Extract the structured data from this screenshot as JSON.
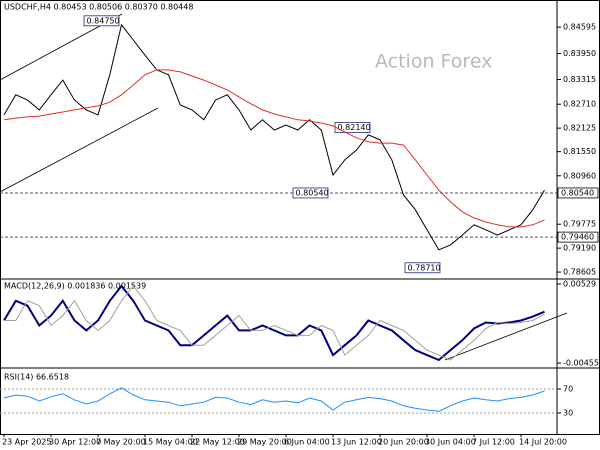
{
  "chart_data": [
    {
      "type": "line",
      "title": "USDCHF,H4 0.80453 0.80506 0.80370 0.80448",
      "watermark": "Action Forex",
      "categories": [
        "23 Apr 2025",
        null,
        null,
        null,
        "30 Apr 12:00",
        null,
        null,
        null,
        "7 May 20:00",
        null,
        null,
        null,
        "15 May 04:00",
        null,
        null,
        null,
        "22 May 12:00",
        null,
        null,
        null,
        "29 May 20:00",
        null,
        null,
        null,
        "6 Jun 04:00",
        null,
        null,
        null,
        "13 Jun 12:00",
        null,
        null,
        null,
        "20 Jun 20:00",
        null,
        null,
        null,
        "30 Jun 04:00",
        null,
        null,
        null,
        "7 Jul 12:00",
        null,
        null,
        null,
        "14 Jul 20:00",
        null,
        null
      ],
      "series": [
        {
          "color": "#000000",
          "values": [
            0.8245,
            0.8294,
            0.8281,
            0.8257,
            0.8294,
            0.833,
            0.8281,
            0.8257,
            0.8245,
            0.8343,
            0.8465,
            0.8428,
            0.8391,
            0.8355,
            0.8343,
            0.8269,
            0.8257,
            0.8233,
            0.8281,
            0.8294,
            0.8257,
            0.8208,
            0.8233,
            0.8208,
            0.822,
            0.8208,
            0.8233,
            0.8208,
            0.8098,
            0.8135,
            0.8159,
            0.8196,
            0.8184,
            0.8135,
            0.8049,
            0.8013,
            0.7964,
            0.7915,
            0.7927,
            0.7951,
            0.7976,
            0.7964,
            0.7951,
            0.7964,
            0.7976,
            0.8013,
            0.8061
          ]
        },
        {
          "color": "#e0302a",
          "values": [
            0.8233,
            0.8237,
            0.824,
            0.8242,
            0.8247,
            0.8252,
            0.8257,
            0.8262,
            0.8267,
            0.8276,
            0.8294,
            0.8318,
            0.8343,
            0.8355,
            0.8355,
            0.835,
            0.834,
            0.833,
            0.8318,
            0.8306,
            0.8289,
            0.8272,
            0.8257,
            0.8247,
            0.824,
            0.8233,
            0.823,
            0.8225,
            0.8218,
            0.8203,
            0.8189,
            0.8179,
            0.8176,
            0.8176,
            0.8171,
            0.8135,
            0.8098,
            0.8061,
            0.8032,
            0.8008,
            0.7993,
            0.7983,
            0.7976,
            0.7971,
            0.7971,
            0.7976,
            0.7988
          ]
        }
      ],
      "ylim": [
        0.7846,
        0.8521
      ],
      "yticks": [
        {
          "value": 0.84595,
          "label": "0.84595"
        },
        {
          "value": 0.8395,
          "label": "0.83950"
        },
        {
          "value": 0.83315,
          "label": "0.83315"
        },
        {
          "value": 0.8271,
          "label": "0.82710"
        },
        {
          "value": 0.82125,
          "label": "0.82125"
        },
        {
          "value": 0.8155,
          "label": "0.81550"
        },
        {
          "value": 0.8096,
          "label": "0.80960"
        },
        {
          "value": 0.79775,
          "label": "0.79775"
        },
        {
          "value": 0.7919,
          "label": "0.79190"
        },
        {
          "value": 0.78605,
          "label": "0.78605"
        }
      ],
      "hlines": [
        {
          "value": 0.8054,
          "label": "0.80540"
        },
        {
          "value": 0.7946,
          "label": "0.79460"
        }
      ],
      "annotations": [
        {
          "value": 0.8475,
          "label": "0.84750"
        },
        {
          "value": 0.8214,
          "label": "0.82140"
        },
        {
          "value": 0.8054,
          "label": "0.80540"
        },
        {
          "value": 0.7871,
          "label": "0.78710"
        }
      ]
    },
    {
      "type": "line",
      "title": "MACD(12,26,9) 0.001836 0.001539",
      "series": [
        {
          "color": "#00007f",
          "values": [
            0.00074,
            0.0032,
            0.00258,
            0.00012,
            0.00135,
            0.0032,
            0.00074,
            -0.00049,
            0.00074,
            0.0032,
            0.00504,
            0.0032,
            0.00074,
            0.00012,
            -0.00049,
            -0.00234,
            -0.00234,
            -0.00111,
            0.00012,
            0.00135,
            -0.00049,
            -0.00049,
            0.00012,
            -0.00049,
            -0.00111,
            -0.00111,
            0.00012,
            -0.00049,
            -0.00357,
            -0.00234,
            -0.00111,
            0.00074,
            0.00012,
            -0.00049,
            -0.00172,
            -0.00295,
            -0.00357,
            -0.00418,
            -0.00295,
            -0.00172,
            -0.00025,
            0.00049,
            0.00037,
            0.00049,
            0.00074,
            0.00123,
            0.00184
          ]
        },
        {
          "color": "#a0a0a0",
          "values": [
            0.00074,
            0.00074,
            0.0032,
            0.00258,
            0.00012,
            0.00135,
            0.0032,
            0.00074,
            -0.00049,
            0.00074,
            0.0032,
            0.00504,
            0.0032,
            0.00074,
            0.00012,
            -0.00049,
            -0.00234,
            -0.00234,
            -0.00111,
            0.00012,
            0.00135,
            -0.00049,
            -0.00049,
            0.00012,
            -0.00049,
            -0.00111,
            -0.00111,
            0.00012,
            -0.00049,
            -0.00357,
            -0.00234,
            -0.00111,
            0.00074,
            0.00012,
            -0.00049,
            -0.00172,
            -0.00295,
            -0.00357,
            -0.00418,
            -0.00295,
            -0.00172,
            -0.00025,
            0.00049,
            0.00037,
            0.00049,
            0.00074,
            0.00154
          ]
        }
      ],
      "ylim": [
        -0.00505,
        0.00566
      ],
      "yticks": [
        0.00529,
        -0.004557
      ]
    },
    {
      "type": "line",
      "title": "RSI(14) 66.6518",
      "series": [
        {
          "color": "#1e90ff",
          "values": [
            55,
            60,
            58,
            50,
            57,
            62,
            52,
            45,
            50,
            62,
            72,
            60,
            52,
            50,
            48,
            42,
            45,
            48,
            56,
            55,
            48,
            44,
            52,
            48,
            50,
            47,
            55,
            50,
            35,
            48,
            52,
            56,
            54,
            50,
            42,
            38,
            35,
            33,
            42,
            50,
            55,
            52,
            50,
            54,
            56,
            60,
            66.65
          ]
        }
      ],
      "ylim": [
        0,
        100
      ],
      "yticks": [
        70,
        30
      ]
    }
  ]
}
